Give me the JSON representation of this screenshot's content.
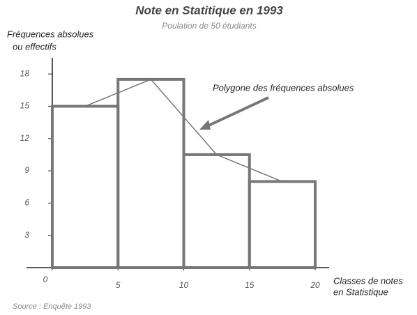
{
  "chart_data": {
    "type": "histogram",
    "title": "Note en Statitique en 1993",
    "subtitle": "Poulation de 50 étudiants",
    "y_label": [
      "Fréquences absolues",
      "ou effectifs"
    ],
    "x_label": [
      "Classes de notes",
      "en Statistique"
    ],
    "annotation": "Polygone des fréquences absolues",
    "source": "Source : Enquête 1993",
    "bins": [
      0,
      5,
      10,
      15,
      20
    ],
    "values": [
      15,
      17.5,
      10.5,
      8
    ],
    "color": "#777777",
    "xlim": [
      0,
      20
    ],
    "xticks": [
      0,
      5,
      10,
      15,
      20
    ],
    "ylim": [
      0,
      19.5
    ],
    "yticks": [
      3,
      6,
      9,
      12,
      15,
      18
    ]
  }
}
